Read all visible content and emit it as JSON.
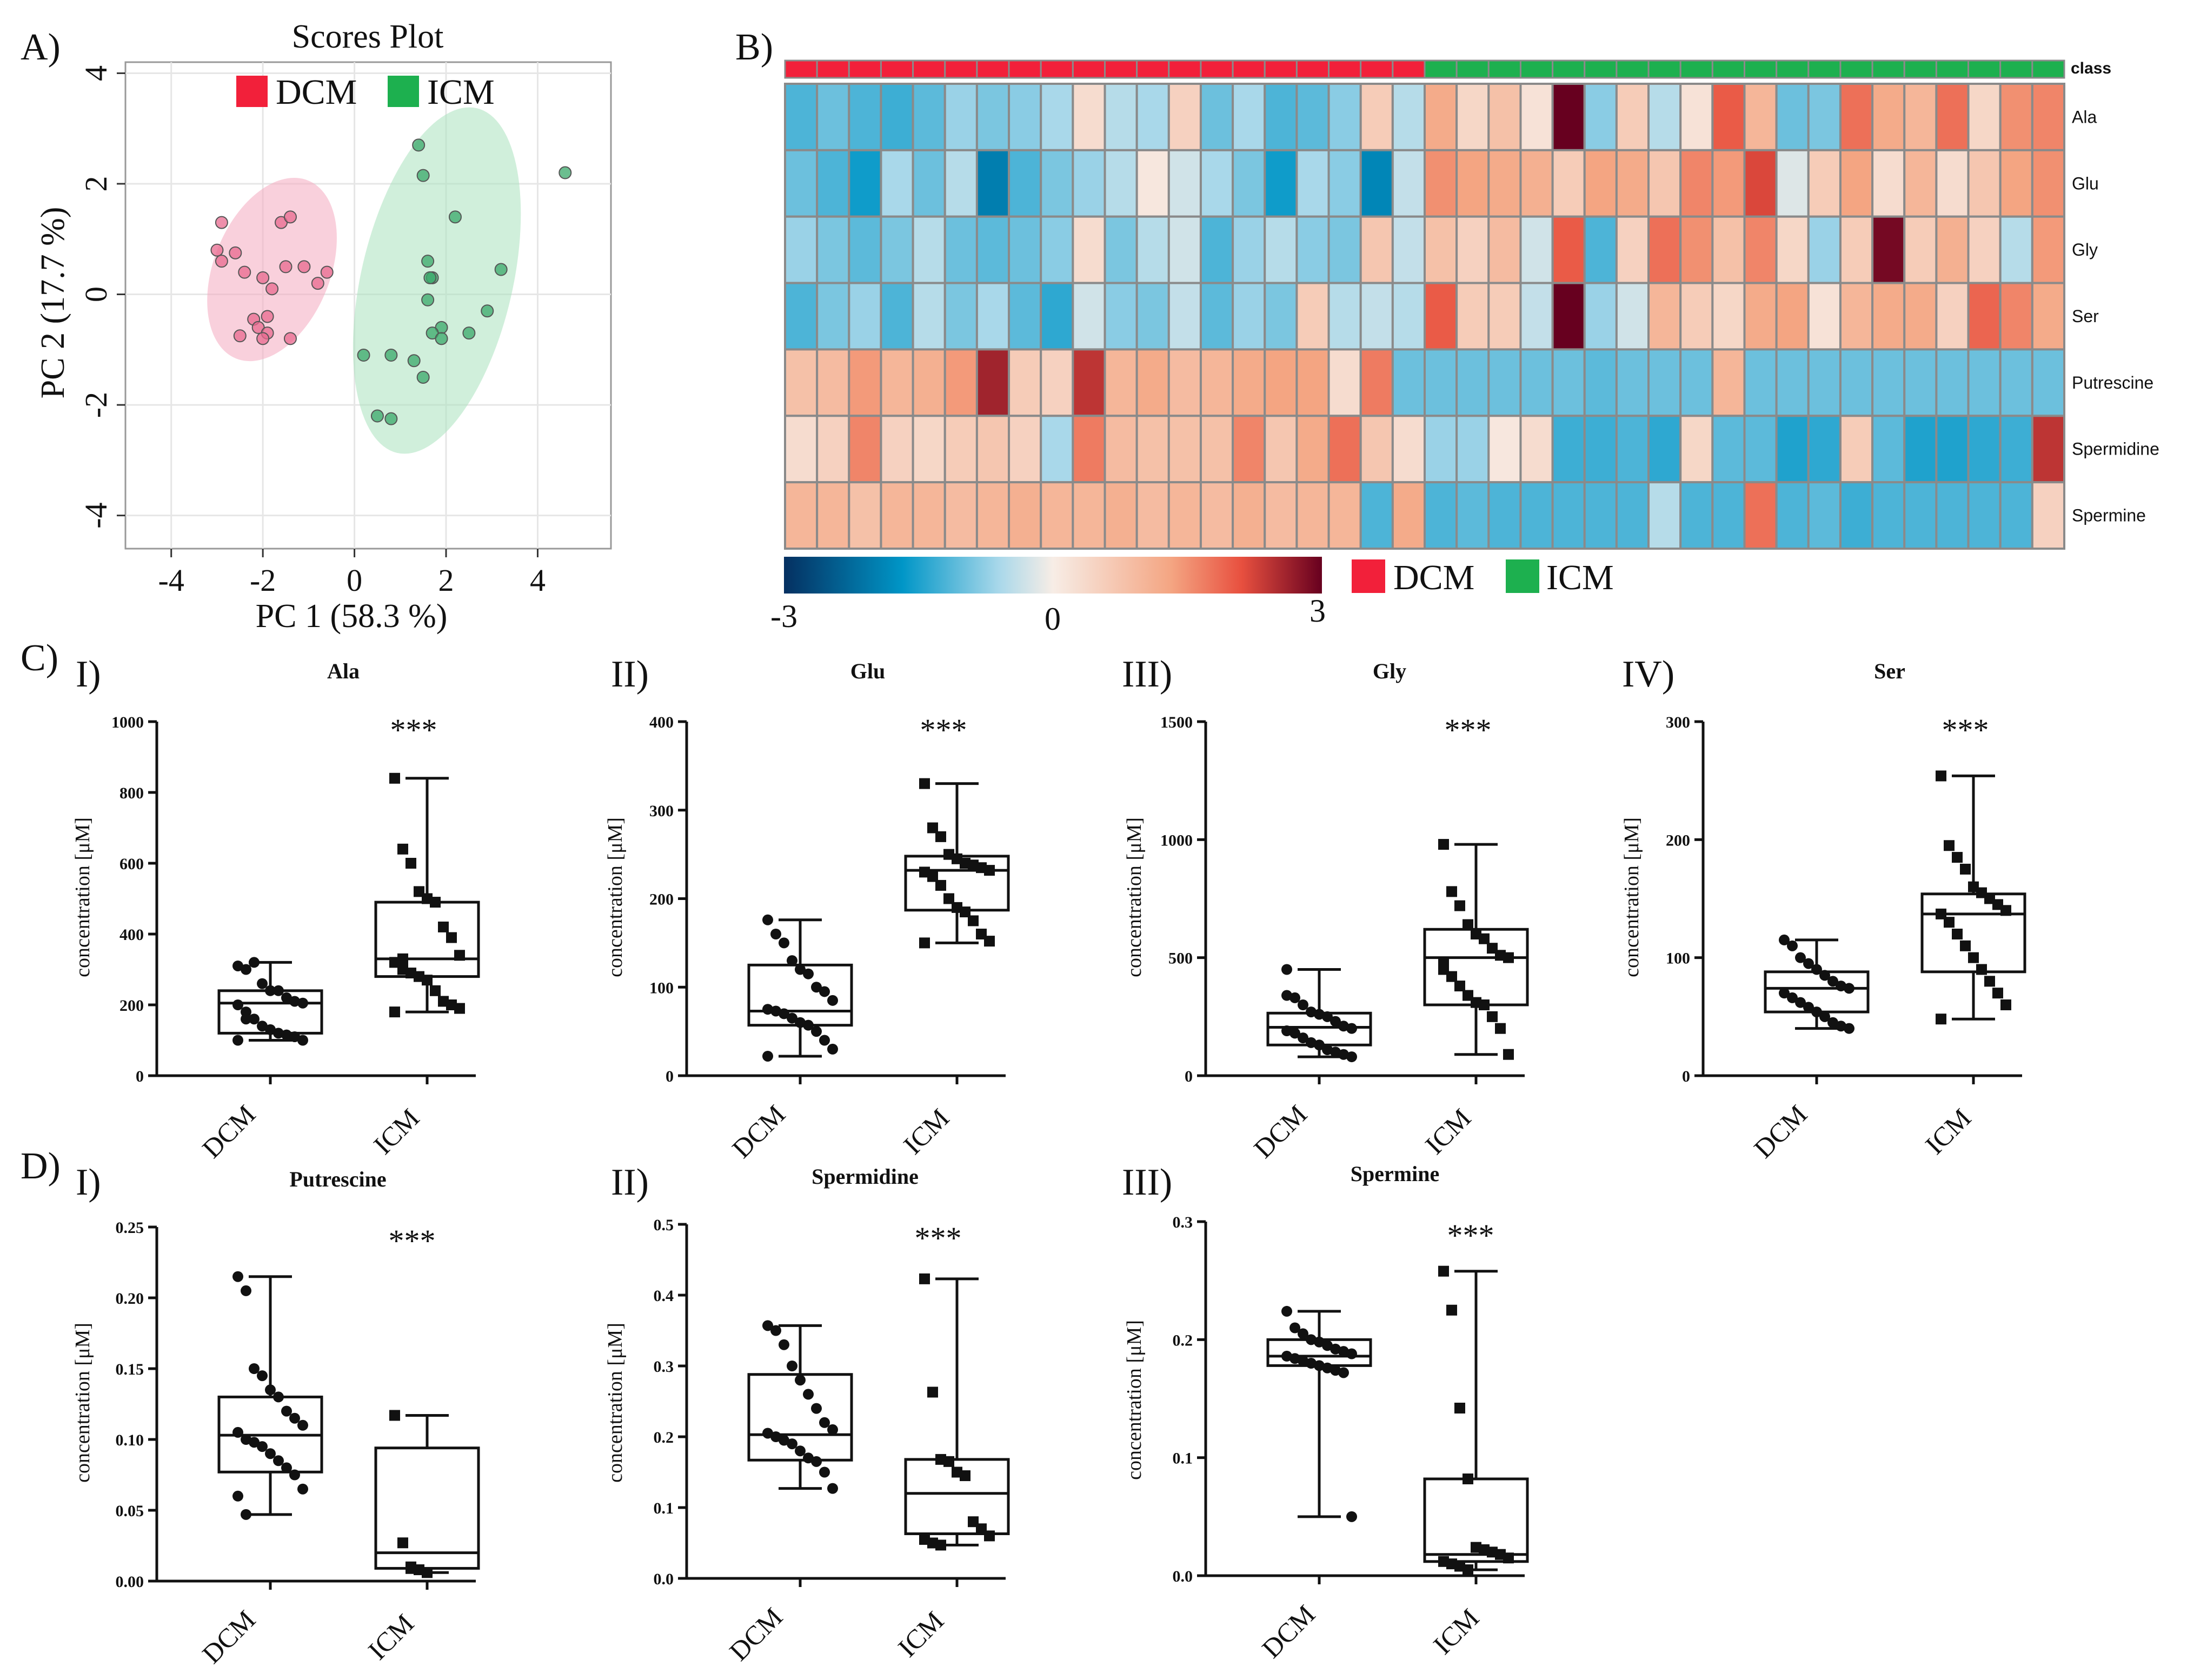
{
  "panel_labels": {
    "A": "A)",
    "B": "B)",
    "C": "C)",
    "D": "D)"
  },
  "sublabels": {
    "c1": "I)",
    "c2": "II)",
    "c3": "III)",
    "c4": "IV)",
    "d1": "I)",
    "d2": "II)",
    "d3": "III)"
  },
  "colors": {
    "dcm": "#f2203a",
    "icm": "#1db04f"
  },
  "chart_data": [
    {
      "id": "scores",
      "type": "scatter",
      "title": "Scores Plot",
      "xlabel": "PC 1 (58.3 %)",
      "ylabel": "PC 2 (17.7 %)",
      "xlim": [
        -5,
        5.6
      ],
      "ylim": [
        -4.6,
        4.2
      ],
      "xticks": [
        -4,
        -2,
        0,
        2,
        4
      ],
      "yticks": [
        -4,
        -2,
        0,
        2,
        4
      ],
      "legend": [
        "DCM",
        "ICM"
      ],
      "ellipses": [
        {
          "group": "DCM",
          "cx": -1.8,
          "cy": 0.45,
          "rx": 1.9,
          "ry": 1.15,
          "angle_deg": -68
        },
        {
          "group": "ICM",
          "cx": 1.8,
          "cy": 0.25,
          "rx": 3.5,
          "ry": 1.5,
          "angle_deg": -77
        }
      ],
      "series": [
        {
          "name": "DCM",
          "points": [
            [
              -2.9,
              1.3
            ],
            [
              -3.0,
              0.8
            ],
            [
              -2.9,
              0.6
            ],
            [
              -2.6,
              0.75
            ],
            [
              -2.4,
              0.4
            ],
            [
              -2.0,
              0.3
            ],
            [
              -1.6,
              1.3
            ],
            [
              -1.4,
              1.4
            ],
            [
              -1.5,
              0.5
            ],
            [
              -1.1,
              0.5
            ],
            [
              -0.8,
              0.2
            ],
            [
              -0.6,
              0.4
            ],
            [
              -1.8,
              0.1
            ],
            [
              -2.2,
              -0.45
            ],
            [
              -2.1,
              -0.6
            ],
            [
              -1.9,
              -0.7
            ],
            [
              -2.0,
              -0.8
            ],
            [
              -2.5,
              -0.75
            ],
            [
              -1.9,
              -0.4
            ],
            [
              -1.4,
              -0.8
            ]
          ]
        },
        {
          "name": "ICM",
          "points": [
            [
              1.4,
              2.7
            ],
            [
              1.5,
              2.15
            ],
            [
              2.2,
              1.4
            ],
            [
              4.6,
              2.2
            ],
            [
              1.6,
              0.6
            ],
            [
              1.7,
              0.3
            ],
            [
              1.65,
              0.3
            ],
            [
              3.2,
              0.45
            ],
            [
              1.6,
              -0.1
            ],
            [
              2.9,
              -0.3
            ],
            [
              1.9,
              -0.6
            ],
            [
              1.7,
              -0.7
            ],
            [
              2.5,
              -0.7
            ],
            [
              1.9,
              -0.8
            ],
            [
              0.8,
              -1.1
            ],
            [
              1.3,
              -1.2
            ],
            [
              1.5,
              -1.5
            ],
            [
              0.5,
              -2.2
            ],
            [
              0.8,
              -2.25
            ],
            [
              0.2,
              -1.1
            ]
          ]
        }
      ]
    },
    {
      "id": "heatmap",
      "type": "heatmap",
      "rows": [
        "Ala",
        "Glu",
        "Gly",
        "Ser",
        "Putrescine",
        "Spermidine",
        "Spermine"
      ],
      "class_label": "class",
      "classes": [
        "DCM",
        "DCM",
        "DCM",
        "DCM",
        "DCM",
        "DCM",
        "DCM",
        "DCM",
        "DCM",
        "DCM",
        "DCM",
        "DCM",
        "DCM",
        "DCM",
        "DCM",
        "DCM",
        "DCM",
        "DCM",
        "DCM",
        "DCM",
        "ICM",
        "ICM",
        "ICM",
        "ICM",
        "ICM",
        "ICM",
        "ICM",
        "ICM",
        "ICM",
        "ICM",
        "ICM",
        "ICM",
        "ICM",
        "ICM",
        "ICM",
        "ICM",
        "ICM",
        "ICM",
        "ICM",
        "ICM"
      ],
      "values": [
        [
          -1.2,
          -1.0,
          -1.2,
          -1.3,
          -1.1,
          -0.7,
          -0.9,
          -0.8,
          -0.6,
          0.3,
          -0.5,
          -0.6,
          0.5,
          -1.0,
          -0.6,
          -1.2,
          -1.1,
          -0.8,
          0.6,
          -0.5,
          1.2,
          0.4,
          0.8,
          0.2,
          3.0,
          -0.8,
          0.6,
          -0.5,
          0.2,
          2.0,
          1.0,
          -1.0,
          -0.9,
          1.8,
          1.2,
          1.0,
          1.8,
          0.4,
          1.5,
          1.6
        ],
        [
          -1.0,
          -1.2,
          -1.6,
          -0.6,
          -1.0,
          -0.5,
          -2.0,
          -1.2,
          -0.9,
          -0.7,
          -0.5,
          0.1,
          -0.3,
          -0.6,
          -0.9,
          -1.6,
          -0.6,
          -0.8,
          -1.9,
          -0.4,
          1.5,
          1.3,
          1.2,
          1.1,
          0.6,
          1.3,
          1.2,
          0.7,
          1.6,
          1.4,
          2.2,
          -0.2,
          0.6,
          1.3,
          0.3,
          1.0,
          0.3,
          0.7,
          1.3,
          1.5
        ],
        [
          -0.7,
          -0.9,
          -1.1,
          -0.9,
          -0.5,
          -1.0,
          -1.1,
          -1.0,
          -0.8,
          0.3,
          -0.9,
          -0.5,
          -0.3,
          -1.2,
          -0.7,
          -0.5,
          -0.8,
          -0.9,
          0.7,
          -0.4,
          0.8,
          0.5,
          0.9,
          -0.3,
          2.0,
          -1.2,
          0.5,
          1.8,
          1.5,
          0.8,
          1.6,
          0.4,
          -0.7,
          0.6,
          2.9,
          0.6,
          1.1,
          0.5,
          -0.5,
          1.4
        ],
        [
          -1.2,
          -0.9,
          -0.7,
          -1.2,
          -0.5,
          -0.9,
          -0.6,
          -1.1,
          -1.4,
          -0.3,
          -0.8,
          -0.9,
          -0.4,
          -1.1,
          -0.7,
          -0.9,
          0.6,
          -0.5,
          -0.4,
          -0.5,
          2.0,
          0.6,
          0.6,
          -0.4,
          3.0,
          -0.7,
          -0.3,
          1.0,
          0.6,
          0.4,
          1.2,
          1.3,
          0.2,
          1.0,
          1.2,
          1.2,
          0.5,
          1.9,
          1.6,
          1.2
        ],
        [
          0.8,
          0.9,
          1.4,
          1.0,
          1.1,
          1.4,
          2.6,
          0.6,
          0.5,
          2.4,
          1.0,
          1.2,
          0.9,
          1.0,
          1.2,
          1.3,
          1.3,
          0.3,
          1.7,
          -1.0,
          -1.0,
          -1.0,
          -1.0,
          -1.0,
          -1.0,
          -1.1,
          -1.0,
          -1.0,
          -1.0,
          1.0,
          -1.0,
          -1.0,
          -1.0,
          -1.0,
          -1.0,
          -1.0,
          -1.0,
          -1.0,
          -1.0,
          -1.0
        ],
        [
          0.3,
          0.5,
          1.6,
          0.5,
          0.4,
          0.6,
          0.7,
          0.5,
          -0.6,
          1.7,
          0.9,
          0.8,
          0.8,
          0.8,
          1.6,
          0.7,
          1.2,
          1.8,
          0.7,
          0.3,
          -0.7,
          -0.7,
          0.1,
          0.3,
          -1.3,
          -1.3,
          -1.2,
          -1.4,
          0.4,
          -1.1,
          -1.1,
          -1.5,
          -1.4,
          0.6,
          -1.1,
          -1.5,
          -1.5,
          -1.4,
          -1.3,
          2.4
        ],
        [
          1.0,
          1.0,
          0.8,
          1.0,
          1.0,
          0.9,
          1.0,
          1.1,
          1.0,
          1.0,
          1.1,
          0.9,
          1.0,
          0.9,
          1.1,
          0.9,
          1.0,
          1.0,
          -1.2,
          1.2,
          -1.2,
          -1.1,
          -1.2,
          -1.2,
          -1.2,
          -1.2,
          -1.2,
          -0.5,
          -1.2,
          -1.2,
          1.8,
          -1.2,
          -1.1,
          -1.3,
          -1.2,
          -1.2,
          -1.2,
          -1.2,
          -1.2,
          0.5
        ]
      ],
      "colorbar": {
        "min_label": "-3",
        "mid_label": "0",
        "max_label": "3"
      },
      "legend": [
        "DCM",
        "ICM"
      ]
    },
    {
      "id": "box_ala",
      "type": "box",
      "title": "Ala",
      "ylabel": "concentration [μM]",
      "ylim": [
        0,
        1000
      ],
      "yticks": [
        0,
        200,
        400,
        600,
        800,
        1000
      ],
      "ytick_labels": [
        "0",
        "200",
        "400",
        "600",
        "800",
        "1000"
      ],
      "categories": [
        "DCM",
        "ICM"
      ],
      "significance": "***",
      "boxes": [
        {
          "min": 100,
          "q1": 120,
          "median": 205,
          "q3": 240,
          "max": 320
        },
        {
          "min": 180,
          "q1": 280,
          "median": 330,
          "q3": 490,
          "max": 840
        }
      ],
      "points": [
        [
          310,
          300,
          320,
          260,
          240,
          240,
          220,
          210,
          205,
          200,
          180,
          160,
          140,
          130,
          120,
          115,
          110,
          100,
          100,
          160
        ],
        [
          840,
          640,
          600,
          520,
          500,
          490,
          420,
          390,
          340,
          320,
          300,
          290,
          280,
          270,
          240,
          210,
          200,
          190,
          180,
          330
        ]
      ]
    },
    {
      "id": "box_glu",
      "type": "box",
      "title": "Glu",
      "ylabel": "concentration [μM]",
      "ylim": [
        0,
        400
      ],
      "yticks": [
        0,
        100,
        200,
        300,
        400
      ],
      "ytick_labels": [
        "0",
        "100",
        "200",
        "300",
        "400"
      ],
      "categories": [
        "DCM",
        "ICM"
      ],
      "significance": "***",
      "boxes": [
        {
          "min": 22,
          "q1": 57,
          "median": 73,
          "q3": 125,
          "max": 176
        },
        {
          "min": 150,
          "q1": 187,
          "median": 232,
          "q3": 248,
          "max": 330
        }
      ],
      "points": [
        [
          176,
          160,
          150,
          130,
          120,
          115,
          100,
          95,
          85,
          75,
          73,
          70,
          65,
          60,
          57,
          50,
          40,
          30,
          22
        ],
        [
          330,
          280,
          270,
          250,
          245,
          240,
          238,
          235,
          232,
          230,
          225,
          215,
          200,
          190,
          185,
          175,
          160,
          152,
          150
        ]
      ]
    },
    {
      "id": "box_gly",
      "type": "box",
      "title": "Gly",
      "ylabel": "concentration [μM]",
      "ylim": [
        0,
        1500
      ],
      "yticks": [
        0,
        500,
        1000,
        1500
      ],
      "ytick_labels": [
        "0",
        "500",
        "1000",
        "1500"
      ],
      "categories": [
        "DCM",
        "ICM"
      ],
      "significance": "***",
      "boxes": [
        {
          "min": 80,
          "q1": 130,
          "median": 205,
          "q3": 265,
          "max": 450
        },
        {
          "min": 90,
          "q1": 300,
          "median": 500,
          "q3": 620,
          "max": 980
        }
      ],
      "points": [
        [
          450,
          330,
          300,
          270,
          260,
          250,
          230,
          210,
          200,
          190,
          180,
          160,
          140,
          130,
          110,
          100,
          90,
          80,
          340
        ],
        [
          980,
          780,
          720,
          640,
          600,
          580,
          540,
          510,
          500,
          450,
          420,
          380,
          340,
          310,
          300,
          250,
          200,
          90,
          480
        ]
      ]
    },
    {
      "id": "box_ser",
      "type": "box",
      "title": "Ser",
      "ylabel": "concentration [μM]",
      "ylim": [
        0,
        300
      ],
      "yticks": [
        0,
        100,
        200,
        300
      ],
      "ytick_labels": [
        "0",
        "100",
        "200",
        "300"
      ],
      "categories": [
        "DCM",
        "ICM"
      ],
      "significance": "***",
      "boxes": [
        {
          "min": 40,
          "q1": 54,
          "median": 74,
          "q3": 88,
          "max": 115
        },
        {
          "min": 48,
          "q1": 88,
          "median": 137,
          "q3": 154,
          "max": 254
        }
      ],
      "points": [
        [
          115,
          110,
          100,
          95,
          90,
          85,
          80,
          76,
          74,
          70,
          66,
          62,
          58,
          54,
          50,
          45,
          42,
          40
        ],
        [
          254,
          195,
          185,
          175,
          160,
          155,
          150,
          145,
          140,
          137,
          130,
          120,
          110,
          100,
          90,
          80,
          70,
          60,
          48
        ]
      ]
    },
    {
      "id": "box_put",
      "type": "box",
      "title": "Putrescine",
      "ylabel": "concentration [μM]",
      "ylim": [
        0,
        0.25
      ],
      "yticks": [
        0,
        0.05,
        0.1,
        0.15,
        0.2,
        0.25
      ],
      "ytick_labels": [
        "0.00",
        "0.05",
        "0.10",
        "0.15",
        "0.20",
        "0.25"
      ],
      "categories": [
        "DCM",
        "ICM"
      ],
      "significance": "***",
      "boxes": [
        {
          "min": 0.047,
          "q1": 0.077,
          "median": 0.103,
          "q3": 0.13,
          "max": 0.215
        },
        {
          "min": 0.006,
          "q1": 0.009,
          "median": 0.02,
          "q3": 0.094,
          "max": 0.117
        }
      ],
      "points": [
        [
          0.215,
          0.205,
          0.15,
          0.145,
          0.135,
          0.13,
          0.12,
          0.115,
          0.11,
          0.105,
          0.1,
          0.098,
          0.095,
          0.09,
          0.085,
          0.08,
          0.075,
          0.065,
          0.06,
          0.047
        ],
        [
          0.117,
          0.027,
          0.01,
          0.008,
          0.006
        ]
      ]
    },
    {
      "id": "box_spd",
      "type": "box",
      "title": "Spermidine",
      "ylabel": "concentration [μM]",
      "ylim": [
        0,
        0.5
      ],
      "yticks": [
        0,
        0.1,
        0.2,
        0.3,
        0.4,
        0.5
      ],
      "ytick_labels": [
        "0.0",
        "0.1",
        "0.2",
        "0.3",
        "0.4",
        "0.5"
      ],
      "categories": [
        "DCM",
        "ICM"
      ],
      "significance": "***",
      "boxes": [
        {
          "min": 0.127,
          "q1": 0.167,
          "median": 0.203,
          "q3": 0.288,
          "max": 0.357
        },
        {
          "min": 0.047,
          "q1": 0.063,
          "median": 0.12,
          "q3": 0.168,
          "max": 0.423
        }
      ],
      "points": [
        [
          0.357,
          0.35,
          0.33,
          0.3,
          0.28,
          0.26,
          0.24,
          0.22,
          0.21,
          0.205,
          0.2,
          0.195,
          0.19,
          0.18,
          0.17,
          0.165,
          0.15,
          0.127
        ],
        [
          0.423,
          0.263,
          0.168,
          0.165,
          0.15,
          0.145,
          0.08,
          0.07,
          0.06,
          0.055,
          0.05,
          0.047
        ]
      ]
    },
    {
      "id": "box_spm",
      "type": "box",
      "title": "Spermine",
      "ylabel": "concentration [μM]",
      "ylim": [
        0,
        0.3
      ],
      "yticks": [
        0,
        0.1,
        0.2,
        0.3
      ],
      "ytick_labels": [
        "0.0",
        "0.1",
        "0.2",
        "0.3"
      ],
      "categories": [
        "DCM",
        "ICM"
      ],
      "significance": "***",
      "boxes": [
        {
          "min": 0.05,
          "q1": 0.178,
          "median": 0.186,
          "q3": 0.2,
          "max": 0.224
        },
        {
          "min": 0.005,
          "q1": 0.012,
          "median": 0.018,
          "q3": 0.082,
          "max": 0.258
        }
      ],
      "points": [
        [
          0.224,
          0.21,
          0.205,
          0.2,
          0.198,
          0.195,
          0.192,
          0.19,
          0.188,
          0.186,
          0.184,
          0.182,
          0.18,
          0.178,
          0.176,
          0.174,
          0.172,
          0.05
        ],
        [
          0.258,
          0.225,
          0.142,
          0.082,
          0.024,
          0.022,
          0.02,
          0.018,
          0.015,
          0.012,
          0.01,
          0.008,
          0.005
        ]
      ]
    }
  ]
}
